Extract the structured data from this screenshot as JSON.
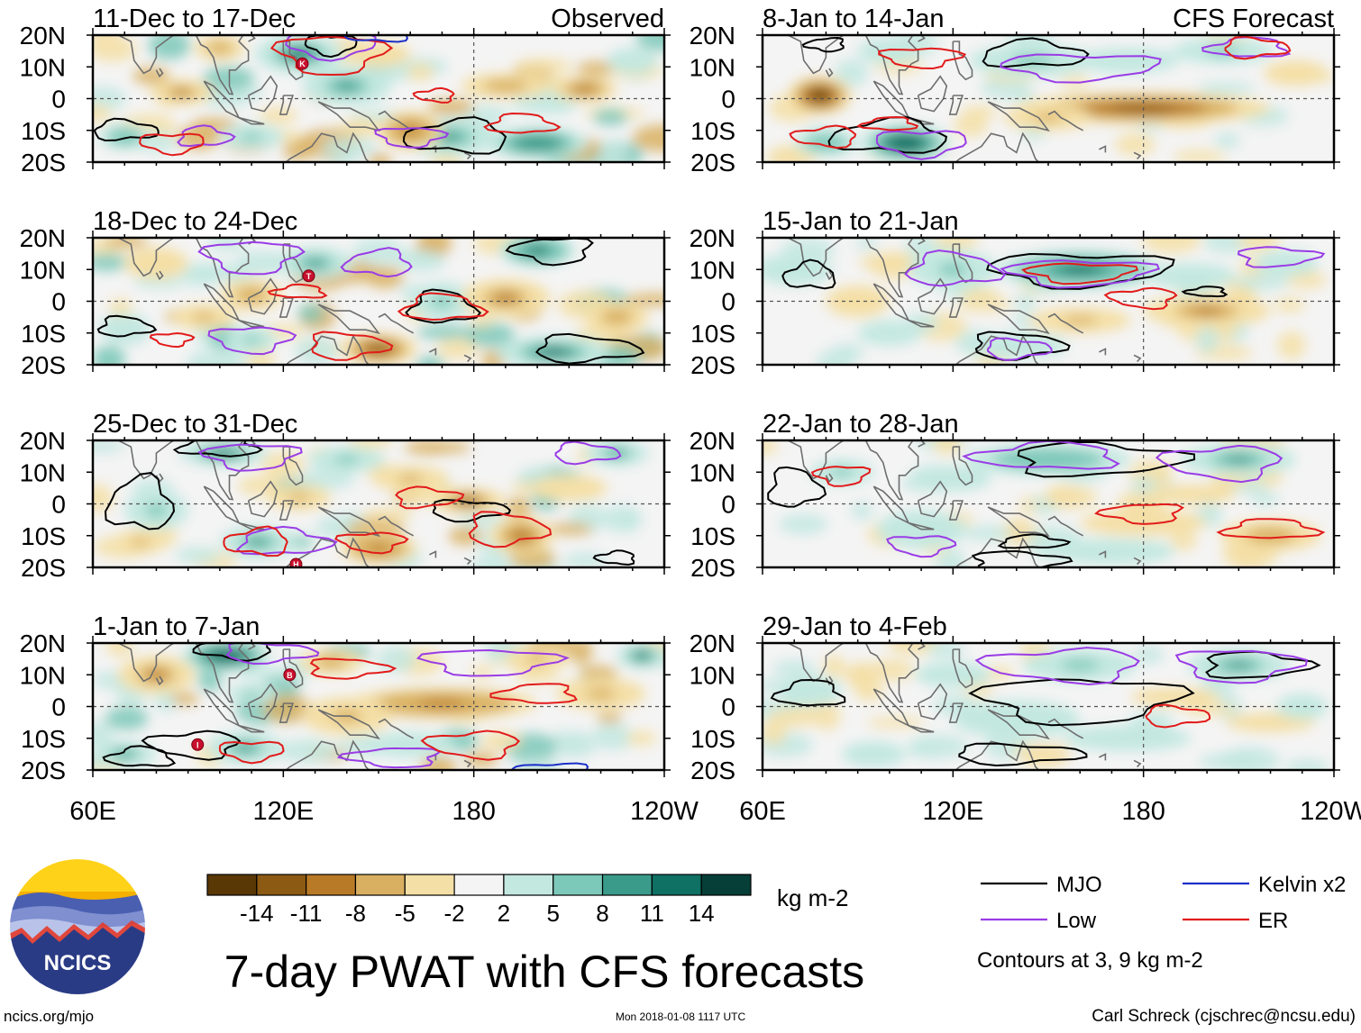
{
  "chart_data": {
    "type": "heatmap",
    "title": "7-day PWAT with CFS forecasts",
    "variable": "7-day precipitable water (PWAT) anomaly",
    "units": "kg m-2",
    "x_ticks": [
      "60E",
      "120E",
      "180",
      "120W"
    ],
    "y_ticks": [
      "20N",
      "10N",
      "0",
      "10S",
      "20S"
    ],
    "x_range_deg": [
      60,
      240
    ],
    "y_range_deg": [
      -20,
      20
    ],
    "colorbar": {
      "labels": [
        "-14",
        "-11",
        "-8",
        "-5",
        "-2",
        "2",
        "5",
        "8",
        "11",
        "14"
      ],
      "colors": [
        "#5a3805",
        "#8c5a13",
        "#b87a26",
        "#d9b061",
        "#f4dfa6",
        "#f4f4f4",
        "#c3e8e0",
        "#7cc8b9",
        "#3a9b8a",
        "#0f7064",
        "#063f37"
      ]
    },
    "columns": [
      {
        "header": "Observed",
        "panels": [
          "11-Dec to 17-Dec",
          "18-Dec to 24-Dec",
          "25-Dec to 31-Dec",
          "1-Jan to 7-Jan"
        ]
      },
      {
        "header": "CFS Forecast",
        "panels": [
          "8-Jan to 14-Jan",
          "15-Jan to 21-Jan",
          "22-Jan to 28-Jan",
          "29-Jan to 4-Feb"
        ]
      }
    ],
    "contour_legend": [
      {
        "name": "MJO",
        "color": "#000000"
      },
      {
        "name": "Kelvin x2",
        "color": "#1d2fc8"
      },
      {
        "name": "Low",
        "color": "#9a3ce6"
      },
      {
        "name": "ER",
        "color": "#e21b1b"
      }
    ],
    "contour_note": "Contours at 3, 9 kg m-2",
    "storm_markers": [
      "K",
      "T",
      "H",
      "I",
      "B"
    ]
  },
  "footer": {
    "logo_text": "NCICS",
    "url": "ncics.org/mjo",
    "timestamp": "Mon 2018-01-08 1117 UTC",
    "credit": "Carl Schreck (cjschrec@ncsu.edu)"
  }
}
